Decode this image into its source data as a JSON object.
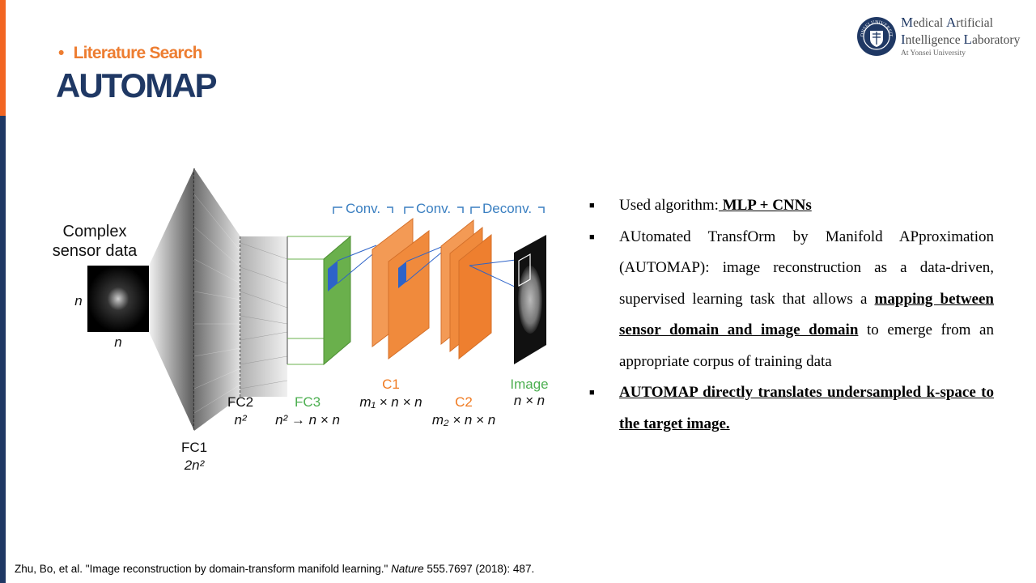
{
  "header": {
    "section_label": "Literature Search",
    "title": "AUTOMAP"
  },
  "logo": {
    "line1_cap1": "M",
    "line1_rest1": "edical ",
    "line1_cap2": "A",
    "line1_rest2": "rtificial",
    "line2_cap1": "I",
    "line2_rest1": "ntelligence ",
    "line2_cap2": "L",
    "line2_rest2": "aboratory",
    "line3": "At Yonsei University",
    "seal_text": "YONSEI UNIVERSITY",
    "colors": {
      "navy": "#1f3864"
    }
  },
  "diagram": {
    "input_label_line1": "Complex",
    "input_label_line2": "sensor data",
    "n_left": "n",
    "n_bottom": "n",
    "fc1_label": "FC1",
    "fc1_size": "2n²",
    "fc2_label": "FC2",
    "fc2_size": "n²",
    "fc3_label": "FC3",
    "fc3_size": "n² → n × n",
    "c1_label": "C1",
    "c1_size": "m₁ × n × n",
    "c2_label": "C2",
    "c2_size": "m₂ × n × n",
    "image_label": "Image",
    "image_size": "n × n",
    "op_conv1": "Conv.",
    "op_conv2": "Conv.",
    "op_deconv": "Deconv.",
    "colors": {
      "fc3": "#6ab04c",
      "conv": "#f08a3c",
      "blue_label": "#3a7fc1",
      "green_label": "#4caf50",
      "orange_label": "#f07b22"
    }
  },
  "bullets": {
    "b1_text": "Used algorithm:",
    "b1_bold": " MLP + CNNs",
    "b2_text1": "AUtomated TransfOrm by Manifold APproximation (AUTOMAP): image reconstruction as a data-driven, supervised learning task that allows a ",
    "b2_bold": "mapping between sensor domain and image domain",
    "b2_text2": " to emerge from an appropriate corpus of training data",
    "b3_bold": "AUTOMAP directly translates undersampled k-space to the target image."
  },
  "footer": {
    "citation_a": "Zhu, Bo, et al. \"Image reconstruction by domain-transform manifold learning.\" ",
    "citation_journal": "Nature",
    "citation_b": " 555.7697 (2018): 487."
  }
}
